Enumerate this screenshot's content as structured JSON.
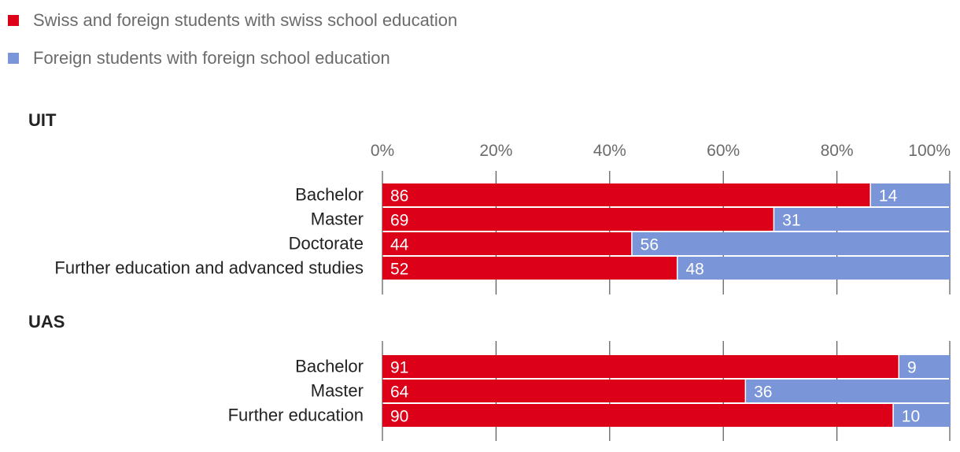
{
  "chart_data": {
    "type": "bar",
    "orientation": "horizontal",
    "stacked": "percent",
    "legend": [
      {
        "name": "Swiss and foreign students with swiss school education",
        "color": "#dc0018"
      },
      {
        "name": "Foreign students with foreign school education",
        "color": "#7a95d8"
      }
    ],
    "x_ticks": [
      "0%",
      "20%",
      "40%",
      "60%",
      "80%",
      "100%"
    ],
    "xlim": [
      0,
      100
    ],
    "groups": [
      {
        "title": "UIT",
        "categories": [
          "Bachelor",
          "Master",
          "Doctorate",
          "Further education and advanced studies"
        ],
        "series": [
          {
            "name": "Swiss and foreign students with swiss school education",
            "values": [
              86,
              69,
              44,
              52
            ]
          },
          {
            "name": "Foreign students with foreign school education",
            "values": [
              14,
              31,
              56,
              48
            ]
          }
        ]
      },
      {
        "title": "UAS",
        "categories": [
          "Bachelor",
          "Master",
          "Further education"
        ],
        "series": [
          {
            "name": "Swiss and foreign students with swiss school education",
            "values": [
              91,
              64,
              90
            ]
          },
          {
            "name": "Foreign students with foreign school education",
            "values": [
              9,
              36,
              10
            ]
          }
        ]
      }
    ]
  }
}
